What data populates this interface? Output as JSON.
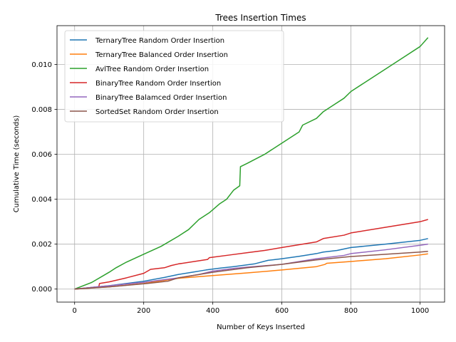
{
  "chart_data": {
    "type": "line",
    "title": "Trees Insertion Times",
    "xlabel": "Number of Keys Inserted",
    "ylabel": "Cumulative Time (seconds)",
    "xlim": [
      -51,
      1071
    ],
    "ylim": [
      -0.00058,
      0.01173
    ],
    "xticks": [
      0,
      200,
      400,
      600,
      800,
      1000
    ],
    "xtick_labels": [
      "0",
      "200",
      "400",
      "600",
      "800",
      "1000"
    ],
    "yticks": [
      0,
      0.002,
      0.004,
      0.006,
      0.008,
      0.01
    ],
    "ytick_labels": [
      "0.000",
      "0.002",
      "0.004",
      "0.006",
      "0.008",
      "0.010"
    ],
    "grid": true,
    "legend_position": "upper-left",
    "series": [
      {
        "name": "TernaryTree Random Order Insertion",
        "color": "#1f77b4",
        "points": [
          [
            0,
            0
          ],
          [
            100,
            0.00015
          ],
          [
            200,
            0.00035
          ],
          [
            260,
            0.00052
          ],
          [
            300,
            0.00065
          ],
          [
            340,
            0.00075
          ],
          [
            380,
            0.00085
          ],
          [
            420,
            0.00093
          ],
          [
            460,
            0.001
          ],
          [
            520,
            0.00112
          ],
          [
            560,
            0.00128
          ],
          [
            600,
            0.00135
          ],
          [
            650,
            0.00146
          ],
          [
            700,
            0.00158
          ],
          [
            720,
            0.00165
          ],
          [
            760,
            0.00172
          ],
          [
            790,
            0.00182
          ],
          [
            800,
            0.00185
          ],
          [
            900,
            0.002
          ],
          [
            1000,
            0.00217
          ],
          [
            1023,
            0.00225
          ]
        ]
      },
      {
        "name": "TernaryTree Balanced Order Insertion",
        "color": "#ff7f0e",
        "points": [
          [
            0,
            0
          ],
          [
            100,
            0.0001
          ],
          [
            200,
            0.00025
          ],
          [
            300,
            0.00048
          ],
          [
            400,
            0.0006
          ],
          [
            500,
            0.00072
          ],
          [
            600,
            0.00085
          ],
          [
            700,
            0.001
          ],
          [
            725,
            0.0011
          ],
          [
            730,
            0.00115
          ],
          [
            800,
            0.00123
          ],
          [
            900,
            0.00135
          ],
          [
            1000,
            0.00152
          ],
          [
            1023,
            0.00157
          ]
        ]
      },
      {
        "name": "AvlTree Random Order Insertion",
        "color": "#2ca02c",
        "points": [
          [
            0,
            0
          ],
          [
            50,
            0.0003
          ],
          [
            100,
            0.00075
          ],
          [
            120,
            0.00095
          ],
          [
            150,
            0.0012
          ],
          [
            200,
            0.00155
          ],
          [
            250,
            0.0019
          ],
          [
            300,
            0.00235
          ],
          [
            330,
            0.00265
          ],
          [
            360,
            0.0031
          ],
          [
            390,
            0.0034
          ],
          [
            420,
            0.0038
          ],
          [
            440,
            0.004
          ],
          [
            450,
            0.0042
          ],
          [
            460,
            0.0044
          ],
          [
            478,
            0.0046
          ],
          [
            480,
            0.00545
          ],
          [
            500,
            0.0056
          ],
          [
            550,
            0.006
          ],
          [
            600,
            0.0065
          ],
          [
            650,
            0.007
          ],
          [
            660,
            0.0073
          ],
          [
            700,
            0.0076
          ],
          [
            720,
            0.0079
          ],
          [
            750,
            0.0082
          ],
          [
            780,
            0.0085
          ],
          [
            800,
            0.0088
          ],
          [
            850,
            0.0093
          ],
          [
            900,
            0.0098
          ],
          [
            950,
            0.0103
          ],
          [
            1000,
            0.0108
          ],
          [
            1023,
            0.0112
          ]
        ]
      },
      {
        "name": "BinaryTree Random Order Insertion",
        "color": "#d62728",
        "points": [
          [
            0,
            0
          ],
          [
            70,
            0.0001
          ],
          [
            72,
            0.00025
          ],
          [
            100,
            0.00032
          ],
          [
            150,
            0.0005
          ],
          [
            200,
            0.0007
          ],
          [
            220,
            0.00088
          ],
          [
            260,
            0.00095
          ],
          [
            280,
            0.00105
          ],
          [
            300,
            0.00112
          ],
          [
            385,
            0.00132
          ],
          [
            390,
            0.0014
          ],
          [
            450,
            0.00152
          ],
          [
            500,
            0.00162
          ],
          [
            550,
            0.00172
          ],
          [
            600,
            0.00185
          ],
          [
            700,
            0.0021
          ],
          [
            720,
            0.00225
          ],
          [
            780,
            0.0024
          ],
          [
            800,
            0.0025
          ],
          [
            900,
            0.00275
          ],
          [
            1000,
            0.003
          ],
          [
            1023,
            0.0031
          ]
        ]
      },
      {
        "name": "BinaryTree Balamced Order Insertion",
        "color": "#9467bd",
        "points": [
          [
            0,
            0
          ],
          [
            100,
            0.00015
          ],
          [
            200,
            0.0003
          ],
          [
            300,
            0.0005
          ],
          [
            360,
            0.00065
          ],
          [
            400,
            0.0008
          ],
          [
            460,
            0.00092
          ],
          [
            500,
            0.00098
          ],
          [
            600,
            0.0011
          ],
          [
            700,
            0.00135
          ],
          [
            780,
            0.0015
          ],
          [
            800,
            0.00158
          ],
          [
            900,
            0.00175
          ],
          [
            1000,
            0.00195
          ],
          [
            1023,
            0.002
          ]
        ]
      },
      {
        "name": "SortedSet Random Order Insertion",
        "color": "#8c564b",
        "points": [
          [
            0,
            0
          ],
          [
            100,
            0.0001
          ],
          [
            210,
            0.00025
          ],
          [
            270,
            0.00035
          ],
          [
            300,
            0.0005
          ],
          [
            400,
            0.00075
          ],
          [
            500,
            0.00095
          ],
          [
            600,
            0.0011
          ],
          [
            700,
            0.0013
          ],
          [
            800,
            0.00145
          ],
          [
            900,
            0.00155
          ],
          [
            1000,
            0.00165
          ],
          [
            1023,
            0.00168
          ]
        ]
      }
    ]
  }
}
